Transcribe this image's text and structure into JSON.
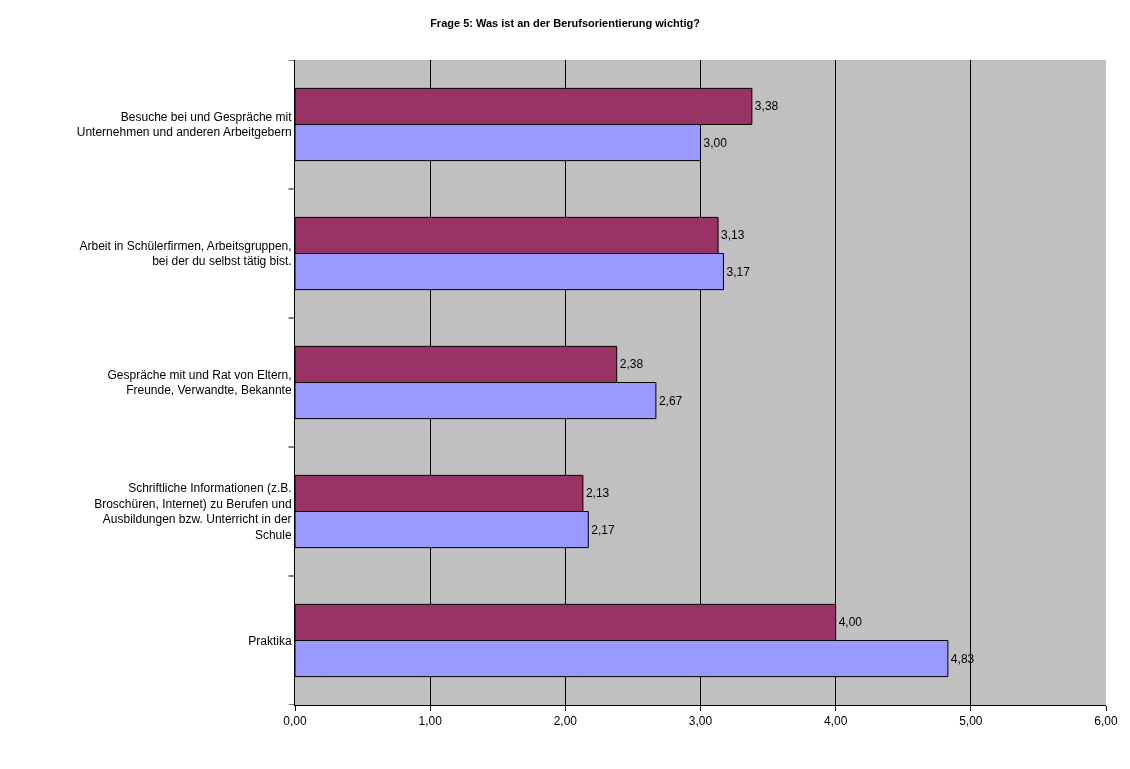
{
  "chart_data": {
    "type": "bar",
    "orientation": "horizontal",
    "title": "Frage 5: Was ist an der Berufsorientierung wichtig?",
    "categories": [
      "Besuche bei und Gespräche mit Unternehmen und anderen Arbeitgebern",
      "Arbeit in Schülerfirmen, Arbeitsgruppen, bei der du selbst tätig bist.",
      "Gespräche mit und Rat von Eltern, Freunde, Verwandte, Bekannte",
      "Schriftliche Informationen (z.B. Broschüren, Internet) zu Berufen und Ausbildungen bzw. Unterricht in der Schule",
      "Praktika"
    ],
    "series": [
      {
        "color": "#993366",
        "values": [
          3.38,
          3.13,
          2.38,
          2.13,
          4.0
        ],
        "value_labels": [
          "3,38",
          "3,13",
          "2,38",
          "2,13",
          "4,00"
        ]
      },
      {
        "color": "#9999ff",
        "values": [
          3.0,
          3.17,
          2.67,
          2.17,
          4.83
        ],
        "value_labels": [
          "3,00",
          "3,17",
          "2,67",
          "2,17",
          "4,83"
        ]
      }
    ],
    "xlim": [
      0,
      6
    ],
    "xticks": [
      {
        "value": 0,
        "label": "0,00"
      },
      {
        "value": 1,
        "label": "1,00"
      },
      {
        "value": 2,
        "label": "2,00"
      },
      {
        "value": 3,
        "label": "3,00"
      },
      {
        "value": 4,
        "label": "4,00"
      },
      {
        "value": 5,
        "label": "5,00"
      },
      {
        "value": 6,
        "label": "6,00"
      }
    ],
    "grid": "x"
  }
}
